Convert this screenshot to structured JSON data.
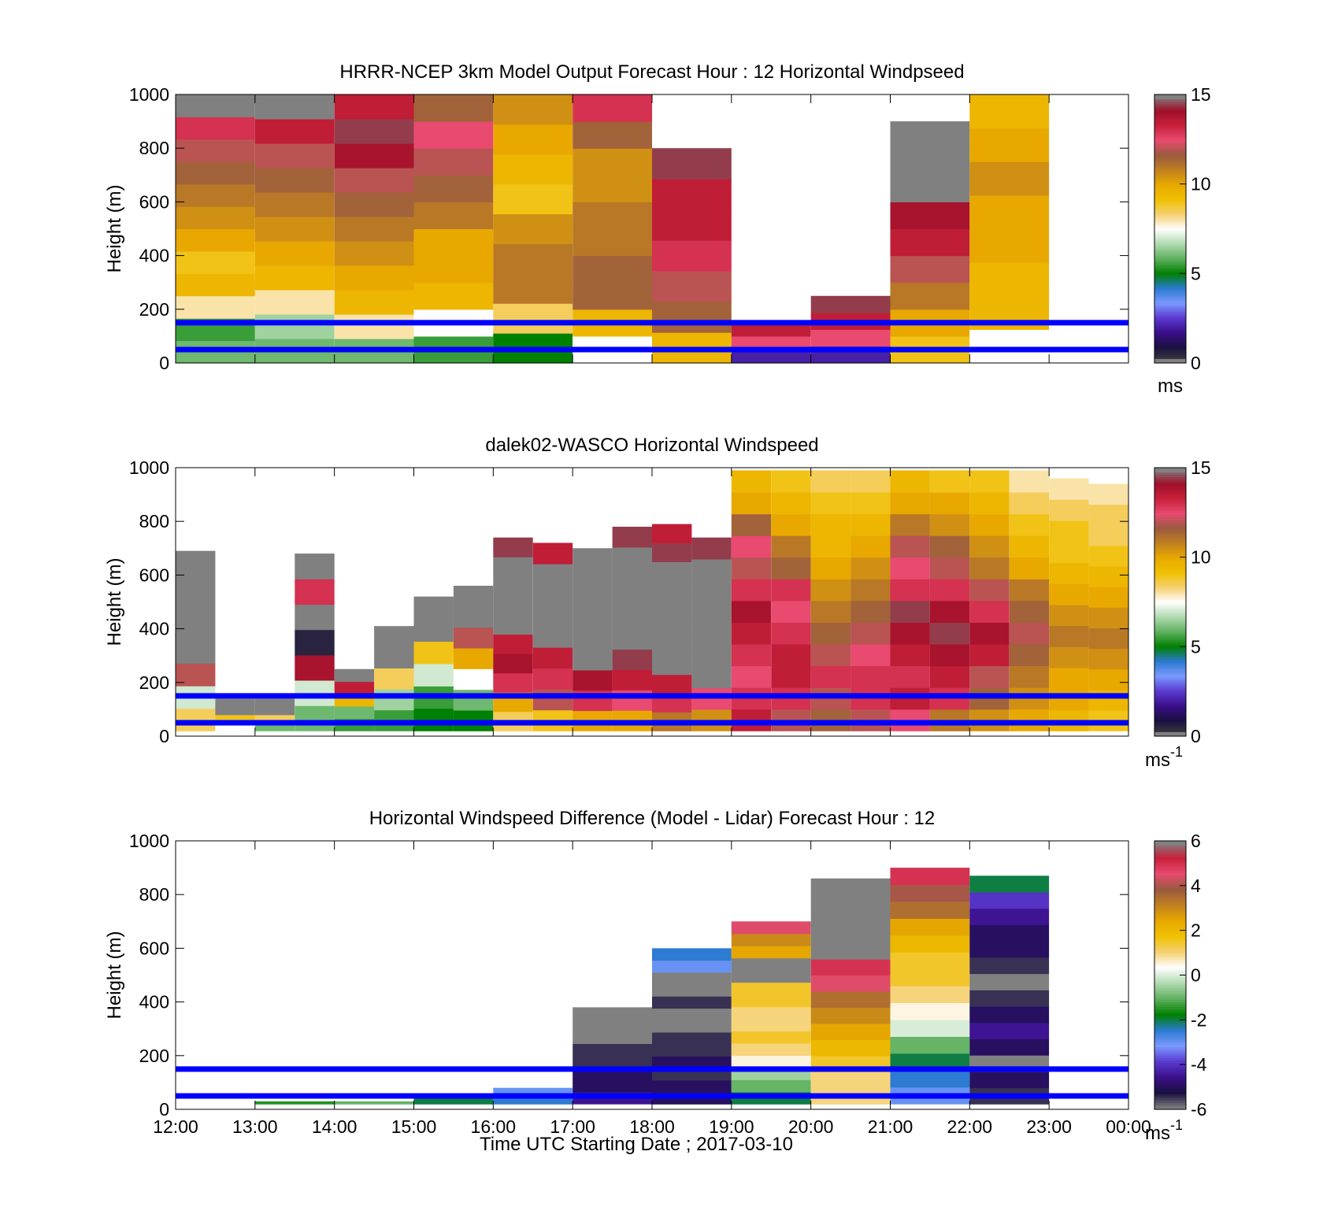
{
  "colors": {
    "background": "#ffffff",
    "ref_line": "#0000ff",
    "missing_gray": "#808080",
    "speed_colormap": [
      "#404040",
      "#1a1040",
      "#3a0f8a",
      "#5a3ad0",
      "#7a9aff",
      "#2a7ad0",
      "#008000",
      "#5fb05f",
      "#b0dab0",
      "#ffffff",
      "#f5d070",
      "#f0c000",
      "#e8a800",
      "#c08020",
      "#9a5a40",
      "#e84a70",
      "#c8203a",
      "#a0102a",
      "#808080"
    ],
    "diff_colormap": [
      "#808080",
      "#1a1040",
      "#3a0f8a",
      "#5a3ad0",
      "#7a9aff",
      "#2a7ad0",
      "#008000",
      "#5fb05f",
      "#b0dab0",
      "#ffffff",
      "#f5d070",
      "#f0c000",
      "#e8a800",
      "#c08020",
      "#9a5a40",
      "#e84a70",
      "#c8203a",
      "#808080"
    ]
  },
  "xlabel": "Time UTC  Starting Date ; 2017-03-10",
  "chart_data": [
    {
      "type": "heatmap",
      "title": "HRRR-NCEP 3km Model Output   Forecast Hour : 12 Horizontal Windpseed",
      "ylabel": "Height (m)",
      "ylim": [
        0,
        1000
      ],
      "yticks": [
        "0",
        "200",
        "400",
        "600",
        "800",
        "1000"
      ],
      "xlim": [
        "12:00",
        "00:00"
      ],
      "ref_lines_m": [
        150,
        50
      ],
      "colorbar": {
        "range": [
          0,
          15
        ],
        "ticks": [
          "0",
          "5",
          "10",
          "15"
        ],
        "unit": "ms"
      },
      "columns": [
        {
          "start": "12:00",
          "top_m": 1000,
          "values_ms": [
            6,
            5.5,
            8,
            9.5,
            9,
            10,
            10.5,
            11,
            11.5,
            12,
            13,
            16
          ]
        },
        {
          "start": "13:00",
          "top_m": 1000,
          "values_ms": [
            6,
            6.5,
            8,
            9.5,
            10,
            10.5,
            11,
            11.5,
            12,
            13.5,
            16
          ]
        },
        {
          "start": "14:00",
          "top_m": 1000,
          "values_ms": [
            6,
            8,
            9.5,
            10,
            10.5,
            11,
            11.5,
            12,
            14,
            14.5,
            13.5
          ]
        },
        {
          "start": "15:00",
          "top_m": 1000,
          "values_ms": [
            5.5,
            7.5,
            9.5,
            10,
            10,
            11,
            11.5,
            12,
            12.5,
            11.5
          ]
        },
        {
          "start": "16:00",
          "top_m": 1000,
          "values_ms": [
            5,
            8.5,
            11,
            11,
            10.5,
            9,
            9.5,
            10,
            10.5
          ]
        },
        {
          "start": "17:00",
          "top_m": 1000,
          "values_ms": [
            7.5,
            9.5,
            11.5,
            11.5,
            11,
            11,
            10.5,
            10.5,
            11.5,
            13
          ]
        },
        {
          "start": "18:00",
          "top_m": 800,
          "values_ms": [
            9.5,
            11.5,
            12,
            13,
            13.5,
            13.5,
            14.5
          ]
        },
        {
          "start": "19:00",
          "top_m": 150,
          "values_ms": [
            2,
            12.5,
            13.5
          ]
        },
        {
          "start": "20:00",
          "top_m": 250,
          "values_ms": [
            2,
            12.5,
            13.5,
            14.5
          ]
        },
        {
          "start": "21:00",
          "top_m": 900,
          "values_ms": [
            9,
            10,
            11,
            12,
            13.5,
            14,
            15,
            16,
            15
          ]
        },
        {
          "start": "22:00",
          "top_m": 1000,
          "values_ms": [
            7.5,
            9.5,
            9.5,
            10,
            10,
            10.5,
            10,
            9.5
          ]
        }
      ]
    },
    {
      "type": "heatmap",
      "title": "dalek02-WASCO  Horizontal Windspeed",
      "ylabel": "Height (m)",
      "ylim": [
        0,
        1000
      ],
      "yticks": [
        "0",
        "200",
        "400",
        "600",
        "800",
        "1000"
      ],
      "xlim": [
        "12:00",
        "00:00"
      ],
      "ref_lines_m": [
        150,
        50
      ],
      "colorbar": {
        "range": [
          0,
          15
        ],
        "ticks": [
          "0",
          "5",
          "10",
          "15"
        ],
        "unit": "ms-1"
      },
      "columns": [
        {
          "start": "12:00",
          "top_m": 690,
          "values_ms": [
            8.5,
            7,
            12,
            16,
            16,
            16,
            16,
            16
          ]
        },
        {
          "start": "12:30",
          "top_m": 140,
          "values_ms": [
            7.5,
            9,
            16,
            16
          ]
        },
        {
          "start": "13:00",
          "top_m": 140,
          "values_ms": [
            6,
            8.5,
            16,
            16
          ]
        },
        {
          "start": "13:30",
          "top_m": 680,
          "values_ms": [
            6,
            7,
            14,
            0.5,
            16,
            13,
            16
          ]
        },
        {
          "start": "14:00",
          "top_m": 250,
          "values_ms": [
            5.5,
            6,
            9.5,
            13.5,
            16
          ]
        },
        {
          "start": "14:30",
          "top_m": 410,
          "values_ms": [
            5.5,
            6.5,
            8.5,
            16,
            16
          ]
        },
        {
          "start": "15:00",
          "top_m": 520,
          "values_ms": [
            5,
            5.5,
            7,
            9,
            16,
            16
          ]
        },
        {
          "start": "15:30",
          "top_m": 560,
          "values_ms": [
            5,
            6,
            7.5,
            10,
            12,
            16,
            16
          ]
        },
        {
          "start": "16:00",
          "top_m": 740,
          "values_ms": [
            8.5,
            10,
            13,
            14,
            13.5,
            16,
            16,
            16,
            16,
            14.5
          ]
        },
        {
          "start": "16:30",
          "top_m": 720,
          "values_ms": [
            9,
            12,
            13,
            13.5,
            16,
            16,
            16,
            16,
            13.5
          ]
        },
        {
          "start": "17:00",
          "top_m": 700,
          "values_ms": [
            10,
            13,
            14,
            16,
            16,
            16,
            16,
            16,
            16
          ]
        },
        {
          "start": "17:30",
          "top_m": 780,
          "values_ms": [
            10,
            12.5,
            13.5,
            14.5,
            16,
            16,
            16,
            16,
            16,
            14.5
          ]
        },
        {
          "start": "18:00",
          "top_m": 790,
          "values_ms": [
            11,
            13,
            13.5,
            16,
            16,
            16,
            16,
            16,
            16,
            14.5,
            13.5
          ]
        },
        {
          "start": "18:30",
          "top_m": 740,
          "values_ms": [
            10.5,
            12.5,
            16,
            16,
            16,
            16,
            16,
            16,
            14.5
          ]
        },
        {
          "start": "19:00",
          "top_m": 990,
          "values_ms": [
            13.5,
            13,
            12.5,
            13,
            13.5,
            14,
            13,
            12,
            12.5,
            11.5,
            10,
            9.5
          ]
        },
        {
          "start": "19:30",
          "top_m": 990,
          "values_ms": [
            12,
            13,
            13.5,
            13.5,
            13,
            12.5,
            13,
            11.5,
            11,
            10,
            9.5,
            9
          ]
        },
        {
          "start": "20:00",
          "top_m": 990,
          "values_ms": [
            11.5,
            12,
            13,
            12,
            11.5,
            11,
            10.5,
            10,
            9.5,
            9.5,
            9,
            8.5
          ]
        },
        {
          "start": "20:30",
          "top_m": 990,
          "values_ms": [
            12,
            13,
            13,
            12.5,
            12,
            11.5,
            11,
            10.5,
            10,
            9.5,
            9,
            8.5
          ]
        },
        {
          "start": "21:00",
          "top_m": 990,
          "values_ms": [
            12.5,
            13.5,
            13,
            13.5,
            14,
            14.5,
            13,
            12.5,
            12,
            11,
            10,
            9.5
          ]
        },
        {
          "start": "21:30",
          "top_m": 990,
          "values_ms": [
            11,
            13,
            13.5,
            14,
            14.5,
            14,
            13,
            12,
            11.5,
            10.5,
            10,
            9
          ]
        },
        {
          "start": "22:00",
          "top_m": 990,
          "values_ms": [
            10.5,
            11.5,
            12,
            13.5,
            14,
            13,
            12,
            11,
            10.5,
            10,
            9.5,
            9
          ]
        },
        {
          "start": "22:30",
          "top_m": 990,
          "values_ms": [
            10,
            10.5,
            11,
            11.5,
            12,
            11.5,
            11,
            10,
            9.5,
            9,
            8.5,
            8
          ]
        },
        {
          "start": "23:00",
          "top_m": 960,
          "values_ms": [
            9.5,
            10,
            10,
            10.5,
            11,
            10.5,
            10,
            9.5,
            9,
            9,
            8.5,
            8
          ]
        },
        {
          "start": "23:30",
          "top_m": 940,
          "values_ms": [
            9,
            9.5,
            10,
            10.5,
            11,
            10.5,
            10,
            9.5,
            9,
            8.5,
            8.5,
            8
          ]
        }
      ]
    },
    {
      "type": "heatmap",
      "title": "Horizontal Windspeed Difference (Model - Lidar) Forecast Hour : 12",
      "ylabel": "Height (m)",
      "ylim": [
        0,
        1000
      ],
      "yticks": [
        "0",
        "200",
        "400",
        "600",
        "800",
        "1000"
      ],
      "xlim": [
        "12:00",
        "00:00"
      ],
      "xticks": [
        "12:00",
        "13:00",
        "14:00",
        "15:00",
        "16:00",
        "17:00",
        "18:00",
        "19:00",
        "20:00",
        "21:00",
        "22:00",
        "23:00",
        "00:00"
      ],
      "ref_lines_m": [
        150,
        50
      ],
      "colorbar": {
        "range": [
          -6,
          6
        ],
        "ticks": [
          "-6",
          "-4",
          "-2",
          "0",
          "2",
          "4",
          "6"
        ],
        "unit": "ms-1"
      },
      "columns": [
        {
          "start": "13:00",
          "top_m": 30,
          "values_ms": [
            -1.5
          ]
        },
        {
          "start": "14:00",
          "top_m": 30,
          "values_ms": [
            -1
          ]
        },
        {
          "start": "15:00",
          "top_m": 40,
          "values_ms": [
            -2
          ]
        },
        {
          "start": "16:00",
          "top_m": 80,
          "values_ms": [
            -2.5,
            -3
          ]
        },
        {
          "start": "17:00",
          "top_m": 380,
          "values_ms": [
            -4.5,
            -5,
            -5,
            -5.5,
            -5.5,
            7,
            7,
            7
          ]
        },
        {
          "start": "18:00",
          "top_m": 600,
          "values_ms": [
            -5,
            -5,
            -5.5,
            -5,
            -5.5,
            -5.5,
            -6.5,
            9,
            -5.5,
            -6,
            9,
            -3,
            -2.5
          ]
        },
        {
          "start": "19:00",
          "top_m": 700,
          "values_ms": [
            -2,
            -1,
            -0.5,
            0.5,
            1,
            1.5,
            1,
            1,
            1.5,
            1.5,
            9,
            9,
            2.5,
            3,
            4.5
          ]
        },
        {
          "start": "20:00",
          "top_m": 860,
          "values_ms": [
            1,
            1,
            1.5,
            2,
            2.5,
            3,
            3.5,
            4.5,
            5,
            7,
            7,
            7,
            7,
            7
          ]
        },
        {
          "start": "21:00",
          "top_m": 900,
          "values_ms": [
            -3,
            -2.5,
            -2,
            -1,
            0,
            0.5,
            1,
            1.5,
            1.5,
            2,
            2.5,
            3.5,
            4,
            5
          ]
        },
        {
          "start": "22:00",
          "top_m": 870,
          "values_ms": [
            -5.5,
            -5,
            9,
            -5,
            -4.5,
            -5,
            -5.5,
            -6,
            -5.5,
            -5,
            -5,
            -4.5,
            -4,
            -2
          ]
        }
      ]
    }
  ]
}
